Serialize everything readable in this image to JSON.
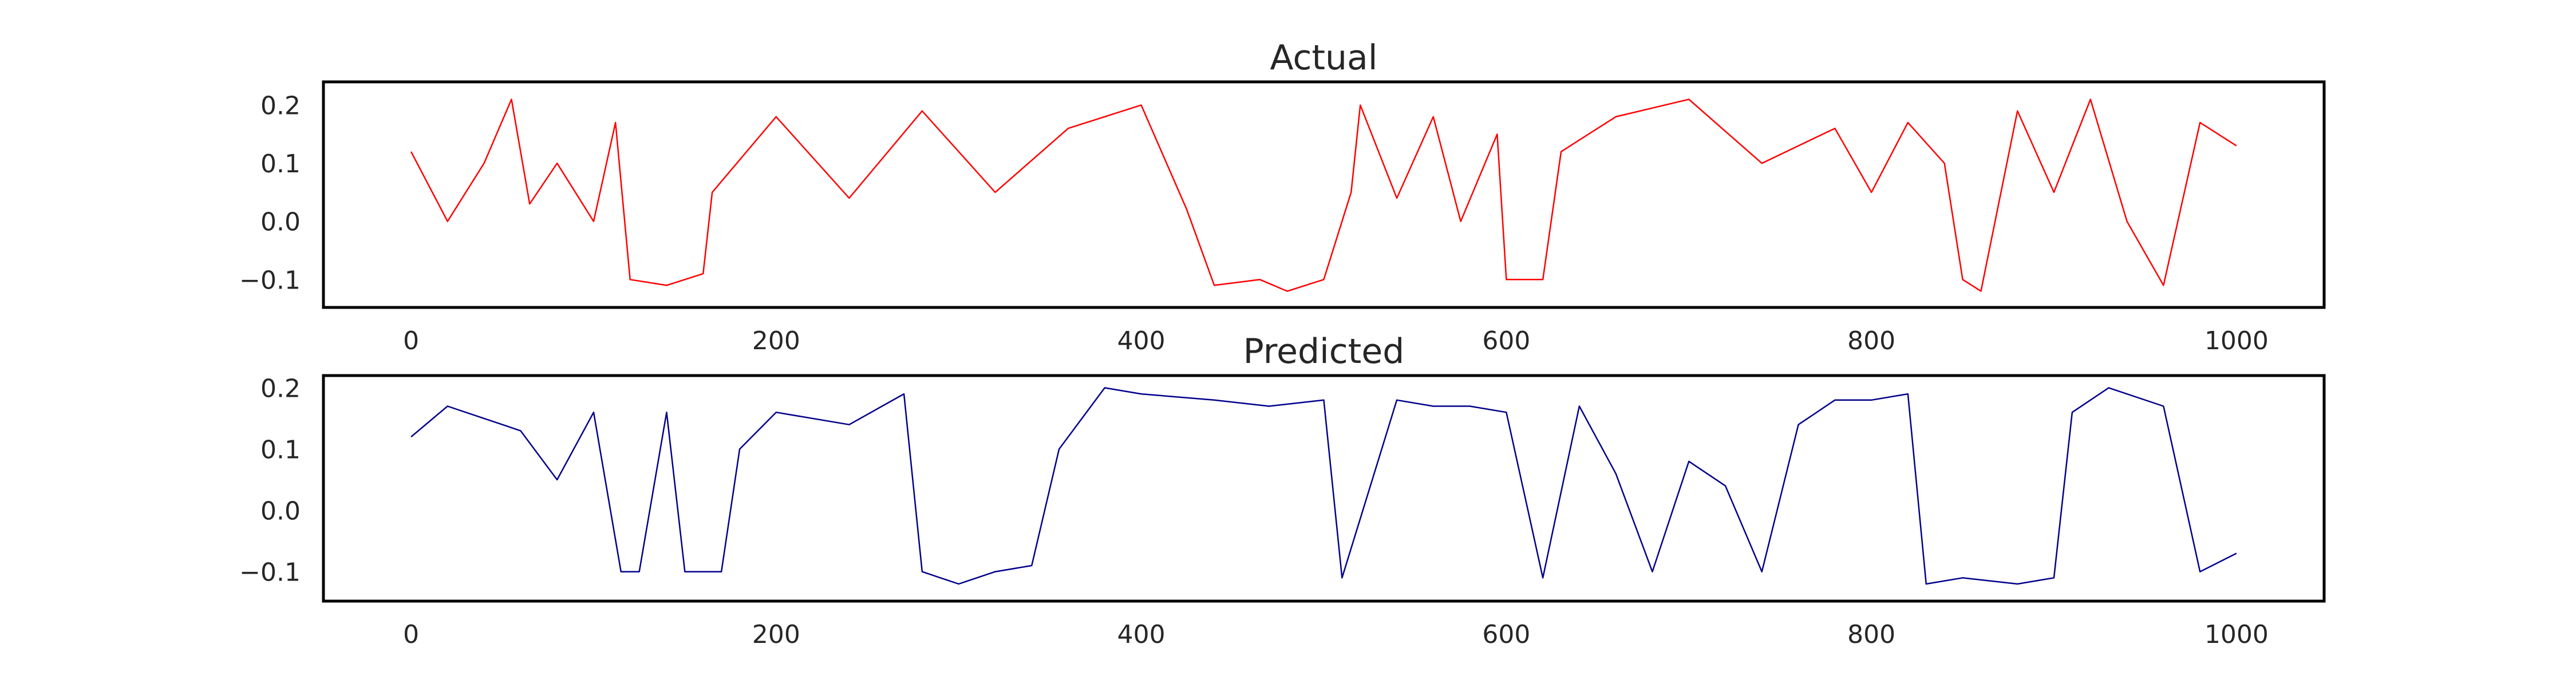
{
  "chart_data": [
    {
      "type": "line",
      "title": "Actual",
      "xlabel": "",
      "ylabel": "",
      "xlim": [
        -48,
        1048
      ],
      "ylim": [
        -0.148,
        0.24
      ],
      "x_ticks": [
        0,
        200,
        400,
        600,
        800,
        1000
      ],
      "x_tick_labels": [
        "0",
        "200",
        "400",
        "600",
        "800",
        "1000"
      ],
      "y_ticks": [
        -0.1,
        0.0,
        0.1,
        0.2
      ],
      "y_tick_labels": [
        "−0.1",
        "0.0",
        "0.1",
        "0.2"
      ],
      "grid": false,
      "series": [
        {
          "color": "#ff0000",
          "x": [
            0,
            20,
            40,
            55,
            65,
            80,
            100,
            112,
            120,
            140,
            160,
            165,
            200,
            240,
            280,
            320,
            360,
            400,
            425,
            440,
            465,
            480,
            500,
            515,
            520,
            540,
            560,
            575,
            595,
            600,
            620,
            630,
            660,
            700,
            740,
            780,
            800,
            820,
            840,
            850,
            860,
            880,
            900,
            920,
            940,
            960,
            980,
            1000
          ],
          "y": [
            0.12,
            0.0,
            0.1,
            0.21,
            0.03,
            0.1,
            0.0,
            0.17,
            -0.1,
            -0.11,
            -0.09,
            0.05,
            0.18,
            0.04,
            0.19,
            0.05,
            0.16,
            0.2,
            0.02,
            -0.11,
            -0.1,
            -0.12,
            -0.1,
            0.05,
            0.2,
            0.04,
            0.18,
            0.0,
            0.15,
            -0.1,
            -0.1,
            0.12,
            0.18,
            0.21,
            0.1,
            0.16,
            0.05,
            0.17,
            0.1,
            -0.1,
            -0.12,
            0.19,
            0.05,
            0.21,
            0.0,
            -0.11,
            0.17,
            0.13
          ]
        }
      ]
    },
    {
      "type": "line",
      "title": "Predicted",
      "xlabel": "",
      "ylabel": "",
      "xlim": [
        -48,
        1048
      ],
      "ylim": [
        -0.148,
        0.22
      ],
      "x_ticks": [
        0,
        200,
        400,
        600,
        800,
        1000
      ],
      "x_tick_labels": [
        "0",
        "200",
        "400",
        "600",
        "800",
        "1000"
      ],
      "y_ticks": [
        -0.1,
        0.0,
        0.1,
        0.2
      ],
      "y_tick_labels": [
        "−0.1",
        "0.0",
        "0.1",
        "0.2"
      ],
      "grid": false,
      "series": [
        {
          "color": "#00008b",
          "x": [
            0,
            20,
            40,
            60,
            80,
            100,
            115,
            125,
            140,
            150,
            170,
            180,
            200,
            240,
            270,
            280,
            300,
            320,
            340,
            355,
            380,
            400,
            440,
            470,
            500,
            510,
            540,
            560,
            580,
            600,
            620,
            640,
            660,
            680,
            700,
            720,
            740,
            760,
            780,
            800,
            820,
            830,
            850,
            880,
            900,
            910,
            930,
            960,
            980,
            1000
          ],
          "y": [
            0.12,
            0.17,
            0.15,
            0.13,
            0.05,
            0.16,
            -0.1,
            -0.1,
            0.16,
            -0.1,
            -0.1,
            0.1,
            0.16,
            0.14,
            0.19,
            -0.1,
            -0.12,
            -0.1,
            -0.09,
            0.1,
            0.2,
            0.19,
            0.18,
            0.17,
            0.18,
            -0.11,
            0.18,
            0.17,
            0.17,
            0.16,
            -0.11,
            0.17,
            0.06,
            -0.1,
            0.08,
            0.04,
            -0.1,
            0.14,
            0.18,
            0.18,
            0.19,
            -0.12,
            -0.11,
            -0.12,
            -0.11,
            0.16,
            0.2,
            0.17,
            -0.1,
            -0.07
          ]
        }
      ]
    }
  ]
}
